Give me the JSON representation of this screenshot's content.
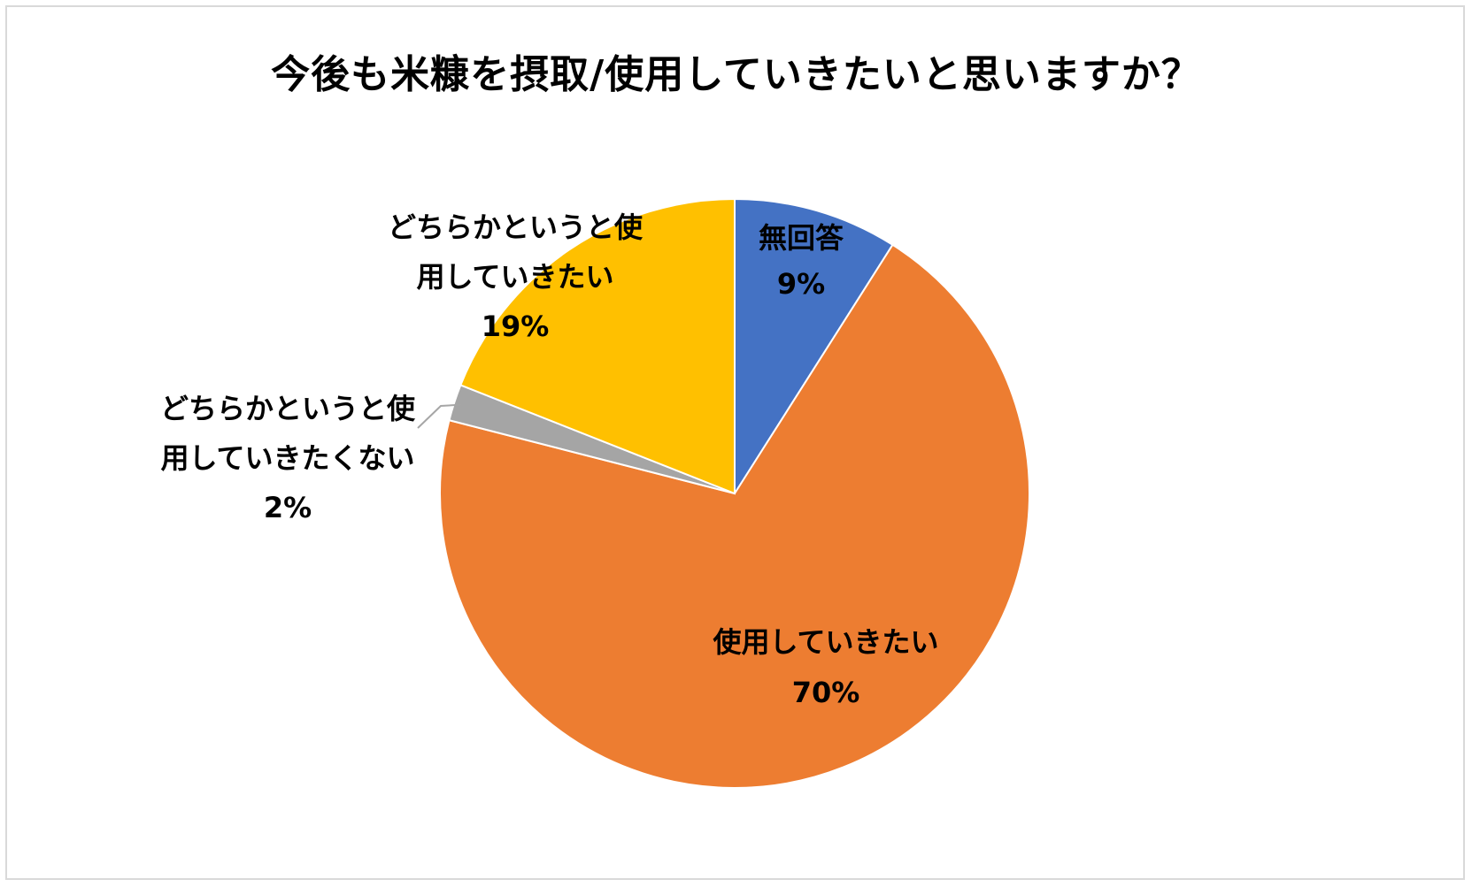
{
  "chart_data": {
    "type": "pie",
    "title": "今後も米糠を摂取/使用していきたいと思いますか？",
    "slices": [
      {
        "label": "無回答",
        "value": 9,
        "value_label": "9%",
        "color": "#4472C4"
      },
      {
        "label": "使用していきたい",
        "value": 70,
        "value_label": "70%",
        "color": "#ED7D31"
      },
      {
        "label": "どちらかというと使用していきたくない",
        "value": 2,
        "value_label": "2%",
        "color": "#A5A5A5"
      },
      {
        "label": "どちらかというと使用していきたい",
        "value": 19,
        "value_label": "19%",
        "color": "#FFC000"
      }
    ],
    "label_lines": {
      "0": [
        "無回答",
        "9%"
      ],
      "1": [
        "使用していきたい",
        "70%"
      ],
      "2": [
        "どちらかというと使",
        "用していきたくない",
        "2%"
      ],
      "3": [
        "どちらかというと使",
        "用していきたい",
        "19%"
      ]
    },
    "legend": "none"
  }
}
